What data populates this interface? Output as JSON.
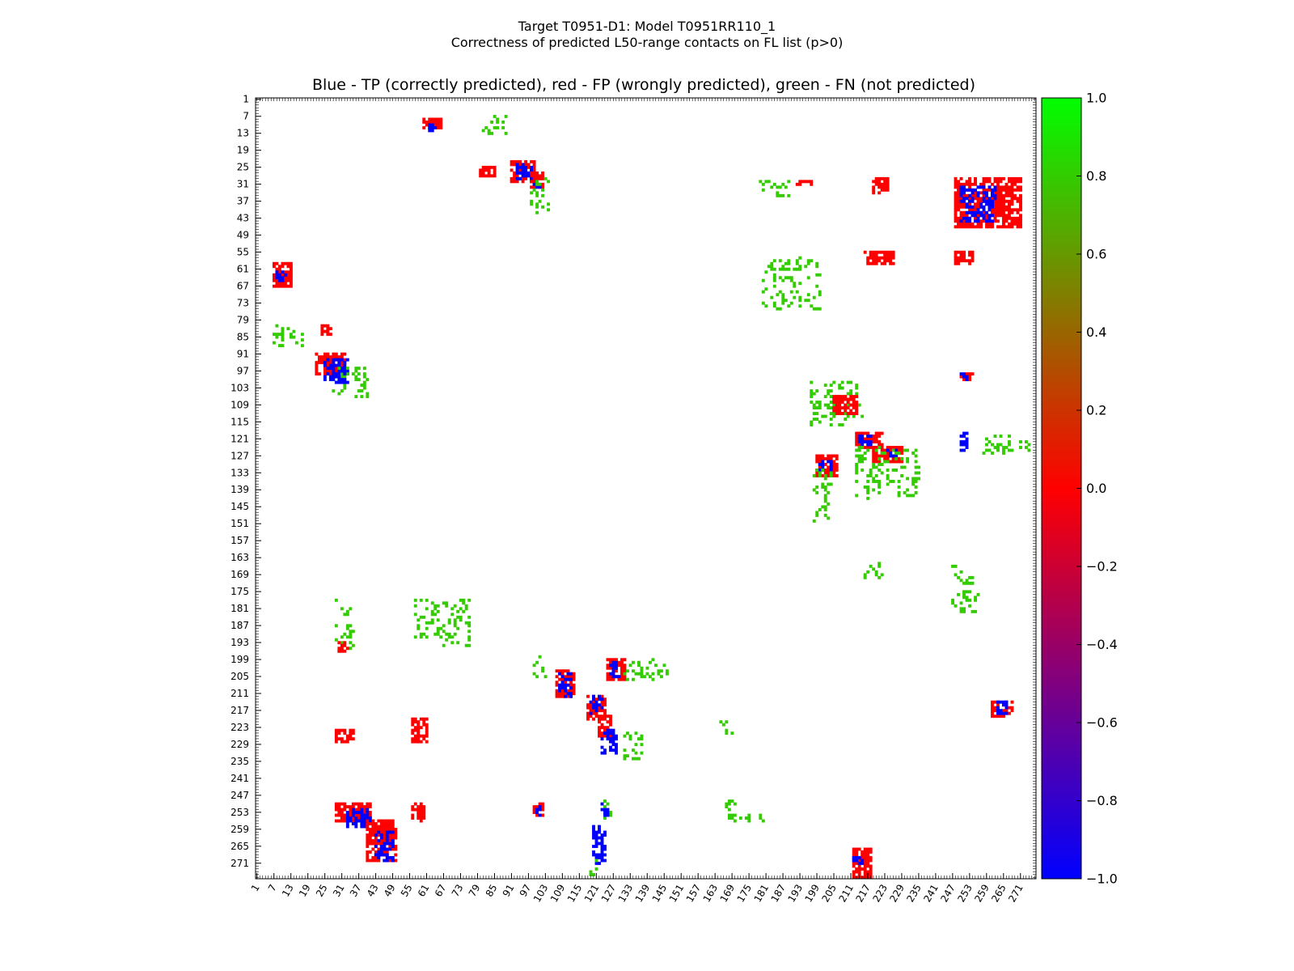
{
  "figure": {
    "suptitle_line1": "Target T0951-D1: Model T0951RR110_1",
    "suptitle_line2": "Correctness of predicted L50-range contacts on FL list (p>0)",
    "axes_title": "Blue - TP (correctly predicted), red - FP (wrongly predicted), green - FN (not predicted)"
  },
  "colors": {
    "tp": "#0000ff",
    "fp": "#ff0000",
    "fn": "#33cc00",
    "colorbar_stops": [
      "#0000ff",
      "#ff0000",
      "#00ff00"
    ]
  },
  "chart_data": {
    "type": "heatmap",
    "xlabel": "",
    "ylabel": "",
    "xlim": [
      1,
      276
    ],
    "ylim": [
      1,
      276
    ],
    "y_inverted": true,
    "x_tick_labels": [
      "1",
      "7",
      "13",
      "19",
      "25",
      "31",
      "37",
      "43",
      "49",
      "55",
      "61",
      "67",
      "73",
      "79",
      "85",
      "91",
      "97",
      "103",
      "109",
      "115",
      "121",
      "127",
      "133",
      "139",
      "145",
      "151",
      "157",
      "163",
      "169",
      "175",
      "181",
      "187",
      "193",
      "199",
      "205",
      "211",
      "217",
      "223",
      "229",
      "235",
      "241",
      "247",
      "253",
      "259",
      "265",
      "271"
    ],
    "y_tick_labels": [
      "1",
      "7",
      "13",
      "19",
      "25",
      "31",
      "37",
      "43",
      "49",
      "55",
      "61",
      "67",
      "73",
      "79",
      "85",
      "91",
      "97",
      "103",
      "109",
      "115",
      "121",
      "127",
      "133",
      "139",
      "145",
      "151",
      "157",
      "163",
      "169",
      "175",
      "181",
      "187",
      "193",
      "199",
      "205",
      "211",
      "217",
      "223",
      "229",
      "235",
      "241",
      "247",
      "253",
      "259",
      "265",
      "271"
    ],
    "colorbar": {
      "range": [
        -1.0,
        1.0
      ],
      "tick_labels": [
        "1.0",
        "0.8",
        "0.6",
        "0.4",
        "0.2",
        "0.0",
        "−0.2",
        "−0.4",
        "−0.6",
        "−0.8",
        "−1.0"
      ],
      "tick_values": [
        1.0,
        0.8,
        0.6,
        0.4,
        0.2,
        0.0,
        -0.2,
        -0.4,
        -0.6,
        -0.8,
        -1.0
      ]
    },
    "categories": {
      "tp": -1.0,
      "fp": 0.0,
      "fn": 1.0
    },
    "clusters": [
      {
        "i": [
          8,
          11
        ],
        "j": [
          60,
          66
        ],
        "value": 0.0
      },
      {
        "i": [
          10,
          12
        ],
        "j": [
          62,
          64
        ],
        "value": -1.0
      },
      {
        "i": [
          7,
          13
        ],
        "j": [
          81,
          89
        ],
        "value": 1.0
      },
      {
        "i": [
          23,
          30
        ],
        "j": [
          91,
          99
        ],
        "value": 0.0
      },
      {
        "i": [
          24,
          29
        ],
        "j": [
          93,
          98
        ],
        "value": -1.0
      },
      {
        "i": [
          27,
          32
        ],
        "j": [
          98,
          102
        ],
        "value": 0.0
      },
      {
        "i": [
          30,
          32
        ],
        "j": [
          99,
          101
        ],
        "value": -1.0
      },
      {
        "i": [
          29,
          41
        ],
        "j": [
          98,
          104
        ],
        "value": 1.0
      },
      {
        "i": [
          25,
          28
        ],
        "j": [
          80,
          85
        ],
        "value": 0.0
      },
      {
        "i": [
          30,
          31
        ],
        "j": [
          192,
          197
        ],
        "value": 0.0
      },
      {
        "i": [
          29,
          34
        ],
        "j": [
          219,
          224
        ],
        "value": 0.0
      },
      {
        "i": [
          29,
          46
        ],
        "j": [
          248,
          271
        ],
        "value": 0.0
      },
      {
        "i": [
          32,
          44
        ],
        "j": [
          250,
          262
        ],
        "value": -1.0
      },
      {
        "i": [
          30,
          36
        ],
        "j": [
          179,
          189
        ],
        "value": 1.0
      },
      {
        "i": [
          55,
          59
        ],
        "j": [
          216,
          226
        ],
        "value": 0.0
      },
      {
        "i": [
          55,
          59
        ],
        "j": [
          248,
          254
        ],
        "value": 0.0
      },
      {
        "i": [
          57,
          75
        ],
        "j": [
          180,
          200
        ],
        "value": 1.0
      },
      {
        "i": [
          59,
          67
        ],
        "j": [
          7,
          13
        ],
        "value": 0.0
      },
      {
        "i": [
          62,
          65
        ],
        "j": [
          8,
          11
        ],
        "value": -1.0
      },
      {
        "i": [
          81,
          88
        ],
        "j": [
          7,
          17
        ],
        "value": 1.0
      },
      {
        "i": [
          81,
          84
        ],
        "j": [
          24,
          27
        ],
        "value": 0.0
      },
      {
        "i": [
          91,
          98
        ],
        "j": [
          22,
          32
        ],
        "value": 0.0
      },
      {
        "i": [
          93,
          100
        ],
        "j": [
          25,
          33
        ],
        "value": -1.0
      },
      {
        "i": [
          96,
          106
        ],
        "j": [
          28,
          40
        ],
        "value": 1.0
      },
      {
        "i": [
          97,
          101
        ],
        "j": [
          29,
          33
        ],
        "value": -1.0
      },
      {
        "i": [
          98,
          100
        ],
        "j": [
          250,
          254
        ],
        "value": 0.0
      },
      {
        "i": [
          98,
          100
        ],
        "j": [
          250,
          252
        ],
        "value": -1.0
      },
      {
        "i": [
          101,
          116
        ],
        "j": [
          197,
          215
        ],
        "value": 1.0
      },
      {
        "i": [
          106,
          112
        ],
        "j": [
          205,
          213
        ],
        "value": 0.0
      },
      {
        "i": [
          119,
          124
        ],
        "j": [
          213,
          222
        ],
        "value": 0.0
      },
      {
        "i": [
          120,
          123
        ],
        "j": [
          214,
          218
        ],
        "value": -1.0
      },
      {
        "i": [
          124,
          129
        ],
        "j": [
          219,
          229
        ],
        "value": 0.0
      },
      {
        "i": [
          125,
          127
        ],
        "j": [
          224,
          227
        ],
        "value": -1.0
      },
      {
        "i": [
          124,
          142
        ],
        "j": [
          213,
          235
        ],
        "value": 1.0
      },
      {
        "i": [
          127,
          134
        ],
        "j": [
          199,
          206
        ],
        "value": 0.0
      },
      {
        "i": [
          128,
          132
        ],
        "j": [
          200,
          204
        ],
        "value": -1.0
      },
      {
        "i": [
          132,
          150
        ],
        "j": [
          198,
          204
        ],
        "value": 1.0
      },
      {
        "i": [
          119,
          125
        ],
        "j": [
          250,
          252
        ],
        "value": -1.0
      },
      {
        "i": [
          120,
          126
        ],
        "j": [
          258,
          274
        ],
        "value": 1.0
      },
      {
        "i": [
          165,
          170
        ],
        "j": [
          216,
          222
        ],
        "value": 1.0
      },
      {
        "i": [
          166,
          182
        ],
        "j": [
          247,
          256
        ],
        "value": 1.0
      },
      {
        "i": [
          178,
          196
        ],
        "j": [
          29,
          35
        ],
        "value": 1.0
      },
      {
        "i": [
          178,
          194
        ],
        "j": [
          57,
          76
        ],
        "value": 1.0
      },
      {
        "i": [
          193,
          196
        ],
        "j": [
          30,
          33
        ],
        "value": 0.0
      },
      {
        "i": [
          198,
          205
        ],
        "j": [
          98,
          103
        ],
        "value": 1.0
      },
      {
        "i": [
          203,
          212
        ],
        "j": [
          107,
          113
        ],
        "value": 0.0
      },
      {
        "i": [
          204,
          212
        ],
        "j": [
          108,
          112
        ],
        "value": -1.0
      },
      {
        "i": [
          199,
          206
        ],
        "j": [
          125,
          131
        ],
        "value": 0.0
      },
      {
        "i": [
          200,
          205
        ],
        "j": [
          126,
          129
        ],
        "value": -1.0
      },
      {
        "i": [
          199,
          206
        ],
        "j": [
          131,
          146
        ],
        "value": 1.0
      },
      {
        "i": [
          212,
          220
        ],
        "j": [
          118,
          124
        ],
        "value": 0.0
      },
      {
        "i": [
          212,
          218
        ],
        "j": [
          119,
          123
        ],
        "value": -1.0
      },
      {
        "i": [
          219,
          226
        ],
        "j": [
          122,
          126
        ],
        "value": 0.0
      },
      {
        "i": [
          224,
          232
        ],
        "j": [
          123,
          128
        ],
        "value": -1.0
      },
      {
        "i": [
          225,
          234
        ],
        "j": [
          131,
          137
        ],
        "value": 1.0
      },
      {
        "i": [
          224,
          228
        ],
        "j": [
          29,
          35
        ],
        "value": 0.0
      },
      {
        "i": [
          220,
          228
        ],
        "j": [
          56,
          61
        ],
        "value": 0.0
      },
      {
        "i": [
          221,
          226
        ],
        "j": [
          165,
          170
        ],
        "value": 1.0
      },
      {
        "i": [
          214,
          219
        ],
        "j": [
          261,
          268
        ],
        "value": 0.0
      },
      {
        "i": [
          214,
          219
        ],
        "j": [
          263,
          266
        ],
        "value": -1.0
      },
      {
        "i": [
          248,
          255
        ],
        "j": [
          166,
          170
        ],
        "value": 1.0
      },
      {
        "i": [
          254,
          256
        ],
        "j": [
          168,
          180
        ],
        "value": 1.0
      },
      {
        "i": [
          250,
          256
        ],
        "j": [
          29,
          41
        ],
        "value": 0.0
      },
      {
        "i": [
          252,
          258
        ],
        "j": [
          33,
          41
        ],
        "value": -1.0
      },
      {
        "i": [
          256,
          270
        ],
        "j": [
          40,
          50
        ],
        "value": 0.0
      },
      {
        "i": [
          260,
          270
        ],
        "j": [
          43,
          49
        ],
        "value": -1.0
      },
      {
        "i": [
          250,
          256
        ],
        "j": [
          56,
          60
        ],
        "value": 0.0
      },
      {
        "i": [
          250,
          254
        ],
        "j": [
          99,
          102
        ],
        "value": 0.0
      },
      {
        "i": [
          251,
          254
        ],
        "j": [
          100,
          101
        ],
        "value": -1.0
      },
      {
        "i": [
          249,
          255
        ],
        "j": [
          124,
          126
        ],
        "value": 1.0
      },
      {
        "i": [
          250,
          254
        ],
        "j": [
          123,
          125
        ],
        "value": -1.0
      },
      {
        "i": [
          258,
          271
        ],
        "j": [
          120,
          124
        ],
        "value": -1.0
      },
      {
        "i": [
          266,
          276
        ],
        "j": [
          212,
          218
        ],
        "value": 0.0
      },
      {
        "i": [
          269,
          271
        ],
        "j": [
          212,
          215
        ],
        "value": -1.0
      },
      {
        "i": [
          270,
          276
        ],
        "j": [
          118,
          121
        ],
        "value": 1.0
      }
    ]
  }
}
